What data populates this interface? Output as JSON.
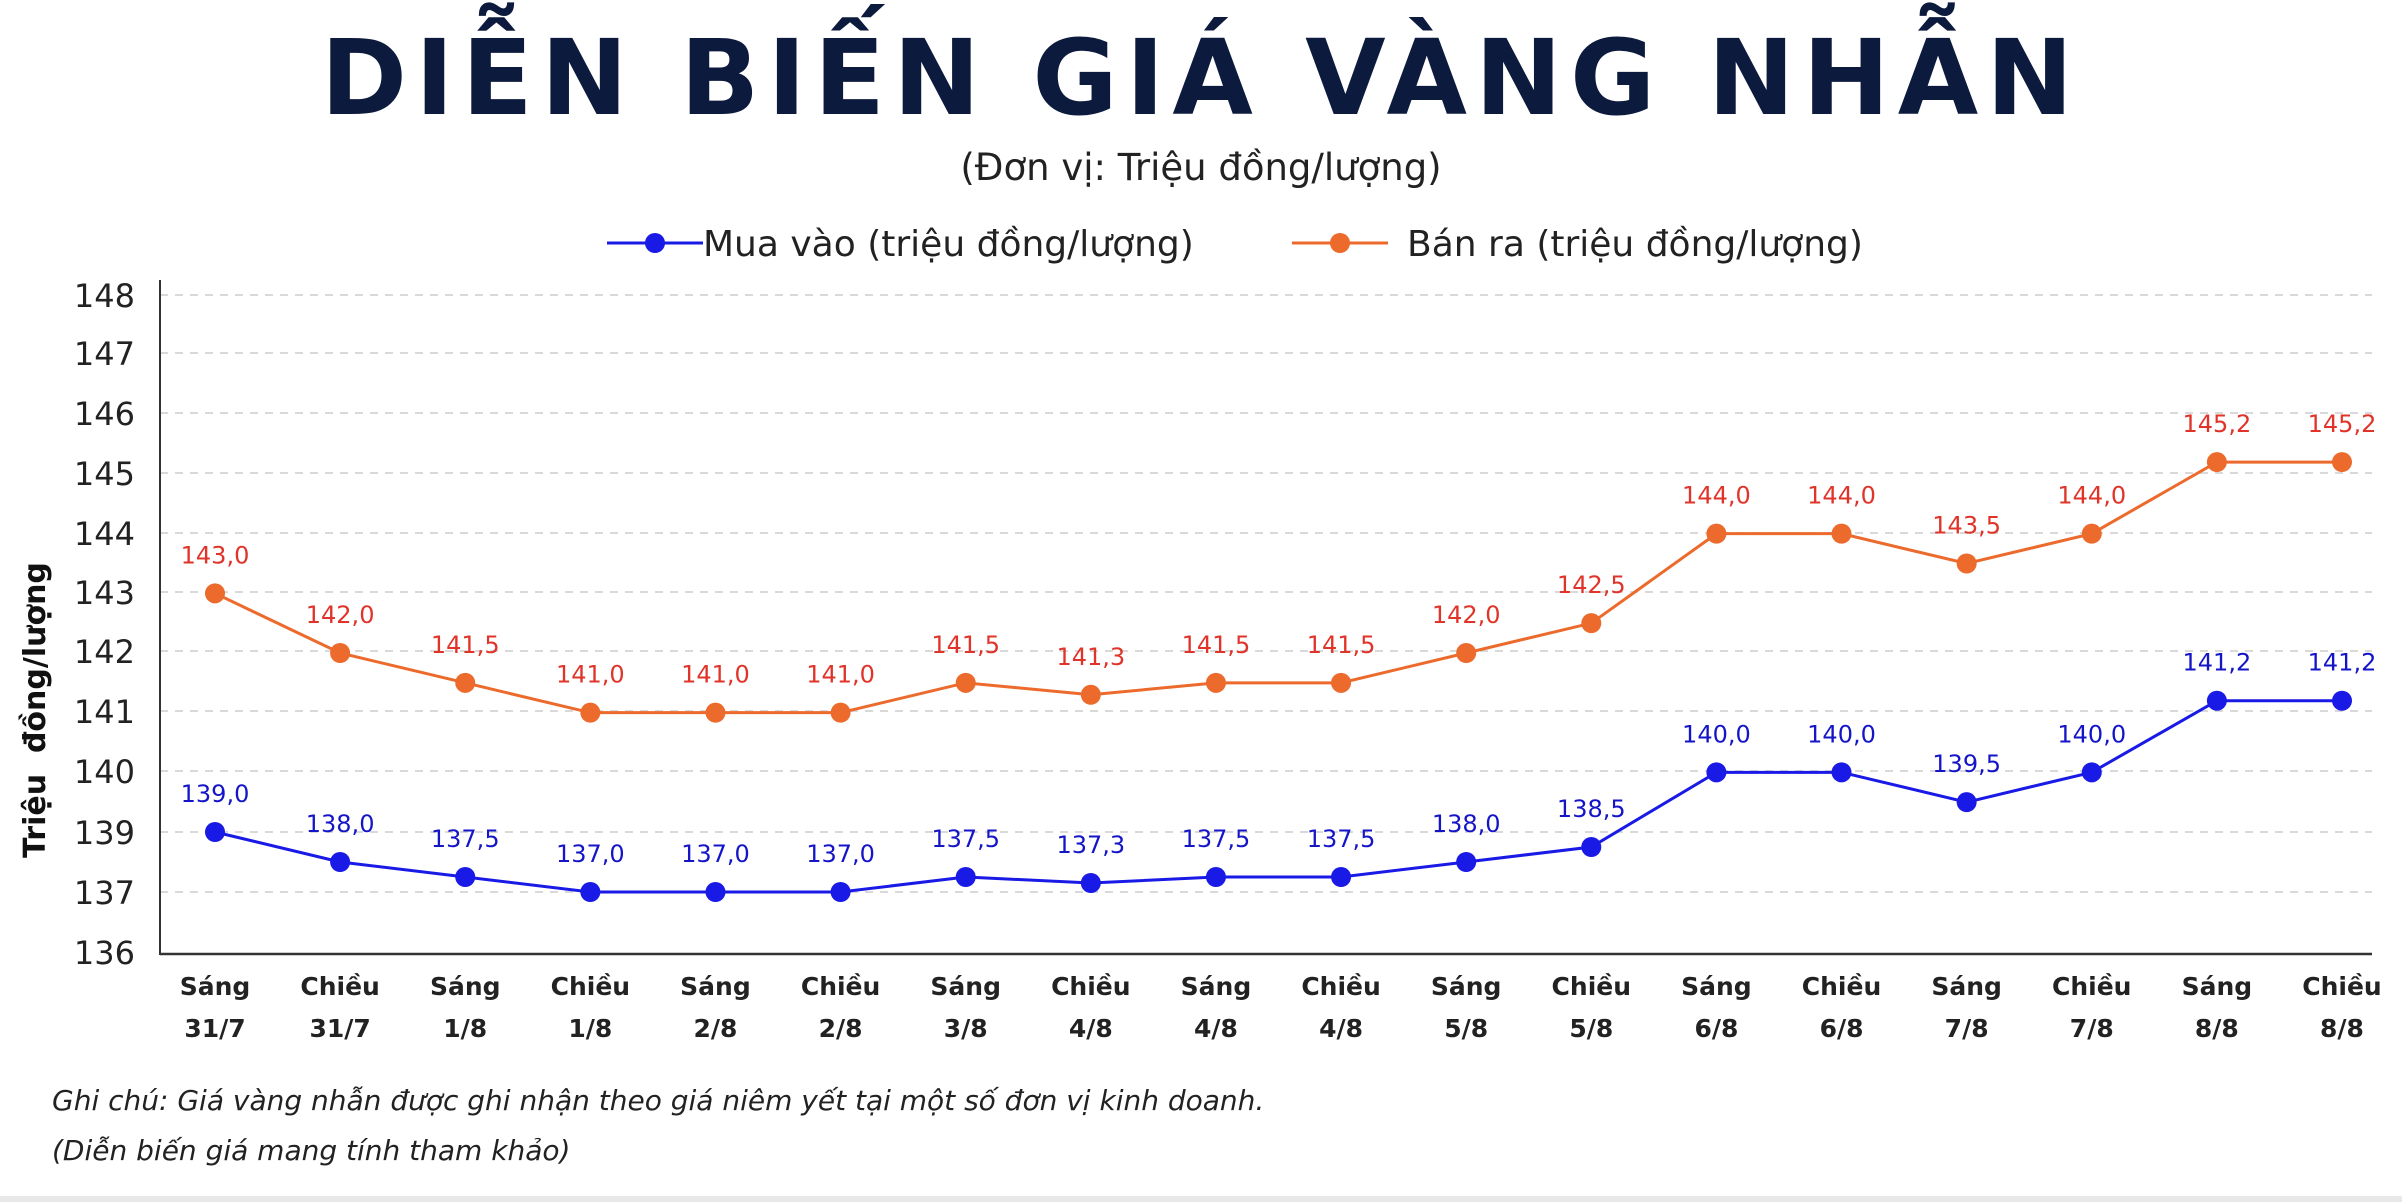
{
  "chart_data": {
    "type": "line",
    "title": "DIỄN BIẾN GIÁ VÀNG NHẪN",
    "subtitle": "(Đơn vị: Triệu đồng/lượng)",
    "ylabel": "Triệu  đồng/lượng",
    "xlabel": "",
    "yticks": [
      148,
      147,
      146,
      145,
      144,
      143,
      142,
      141,
      140,
      139,
      137,
      136
    ],
    "grid": true,
    "legend_position": "top-center",
    "categories": [
      [
        "Sáng",
        "31/7"
      ],
      [
        "Chiều",
        "31/7"
      ],
      [
        "Sáng",
        "1/8"
      ],
      [
        "Chiều",
        "1/8"
      ],
      [
        "Sáng",
        "2/8"
      ],
      [
        "Chiều",
        "2/8"
      ],
      [
        "Sáng",
        "3/8"
      ],
      [
        "Chiều",
        "4/8"
      ],
      [
        "Sáng",
        "4/8"
      ],
      [
        "Chiều",
        "4/8"
      ],
      [
        "Sáng",
        "5/8"
      ],
      [
        "Chiều",
        "5/8"
      ],
      [
        "Sáng",
        "6/8"
      ],
      [
        "Chiều",
        "6/8"
      ],
      [
        "Sáng",
        "7/8"
      ],
      [
        "Chiều",
        "7/8"
      ],
      [
        "Sáng",
        "8/8"
      ],
      [
        "Chiều",
        "8/8"
      ]
    ],
    "series": [
      {
        "name": "Mua vào (triệu đồng/lượng)",
        "color": "#1a1ae6",
        "label_color": "#1515c8",
        "values": [
          139.0,
          138.0,
          137.5,
          137.0,
          137.0,
          137.0,
          137.5,
          137.3,
          137.5,
          137.5,
          138.0,
          138.5,
          140.0,
          140.0,
          139.5,
          140.0,
          141.2,
          141.2
        ],
        "labels": [
          "139,0",
          "138,0",
          "137,5",
          "137,0",
          "137,0",
          "137,0",
          "137,5",
          "137,3",
          "137,5",
          "137,5",
          "138,0",
          "138,5",
          "140,0",
          "140,0",
          "139,5",
          "140,0",
          "141,2",
          "141,2"
        ]
      },
      {
        "name": "Bán ra (triệu đồng/lượng)",
        "color": "#ec6a2c",
        "label_color": "#e0342a",
        "values": [
          143.0,
          142.0,
          141.5,
          141.0,
          141.0,
          141.0,
          141.5,
          141.3,
          141.5,
          141.5,
          142.0,
          142.5,
          144.0,
          144.0,
          143.5,
          144.0,
          145.2,
          145.2
        ],
        "labels": [
          "143,0",
          "142,0",
          "141,5",
          "141,0",
          "141,0",
          "141,0",
          "141,5",
          "141,3",
          "141,5",
          "141,5",
          "142,0",
          "142,5",
          "144,0",
          "144,0",
          "143,5",
          "144,0",
          "145,2",
          "145,2"
        ]
      }
    ]
  },
  "notes": {
    "line1": "Ghi chú: Giá vàng nhẫn được ghi nhận theo giá niêm yết tại một số đơn vị kinh doanh.",
    "line2": "(Diễn biến giá mang tính tham khảo)"
  },
  "colors": {
    "title": "#0c1a3d",
    "grid": "#d9d9d9",
    "axis": "#333333"
  }
}
